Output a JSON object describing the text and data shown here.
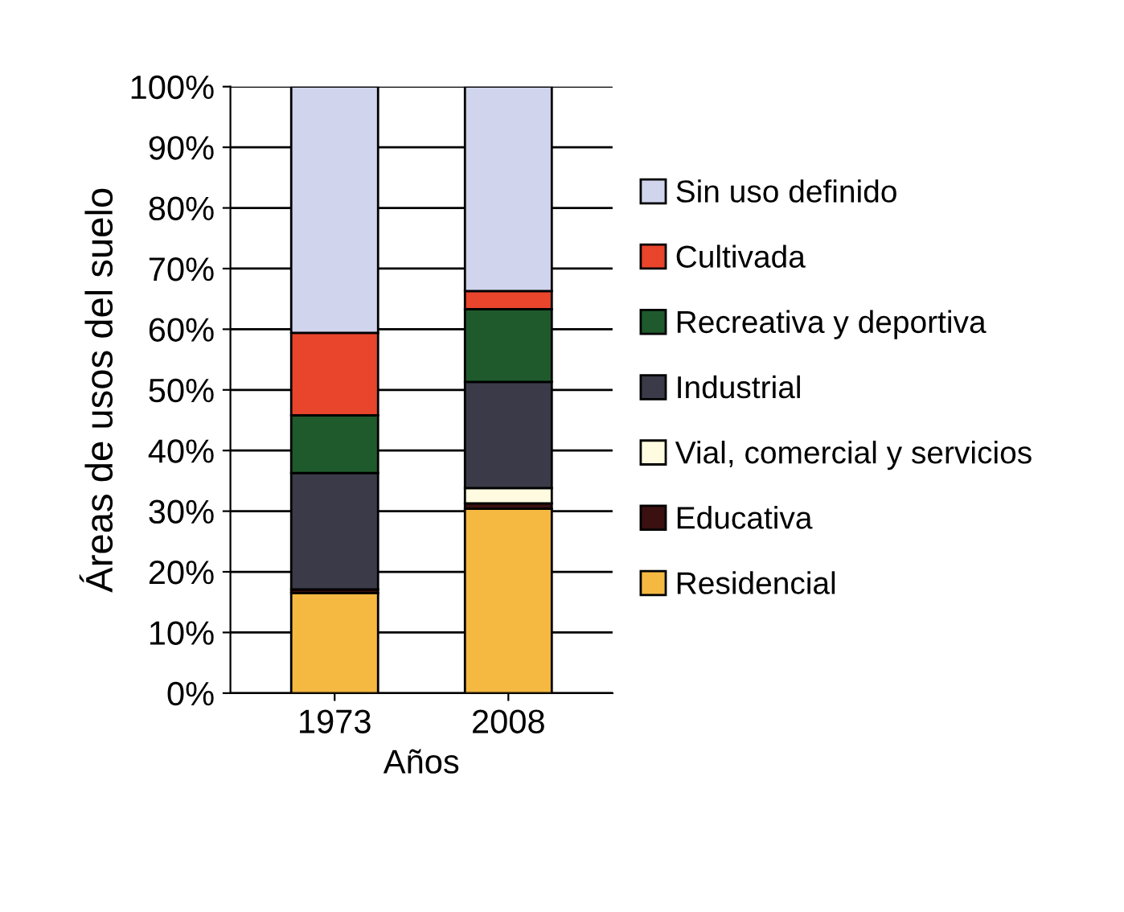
{
  "chart_data": {
    "type": "bar",
    "stacked": true,
    "xlabel": "Años",
    "ylabel": "Áreas de usos del suelo",
    "categories": [
      "1973",
      "2008"
    ],
    "series": [
      {
        "name": "Residencial",
        "color": "#f5b942",
        "values": [
          16.5,
          30.4
        ]
      },
      {
        "name": "Educativa",
        "color": "#3a1010",
        "values": [
          0.6,
          0.9
        ]
      },
      {
        "name": "Vial, comercial y servicios",
        "color": "#fffbe0",
        "values": [
          0,
          2.5
        ]
      },
      {
        "name": "Industrial",
        "color": "#3a3a48",
        "values": [
          19.2,
          17.5
        ]
      },
      {
        "name": "Recreativa y deportiva",
        "color": "#1f5a2c",
        "values": [
          9.5,
          12.0
        ]
      },
      {
        "name": "Cultivada",
        "color": "#e8452c",
        "values": [
          13.6,
          3.0
        ]
      },
      {
        "name": "Sin uso definido",
        "color": "#d0d4ec",
        "values": [
          40.6,
          33.7
        ]
      }
    ],
    "ylim": [
      0,
      100
    ],
    "yticks": [
      {
        "value": 0,
        "label": "0%"
      },
      {
        "value": 10,
        "label": "10%"
      },
      {
        "value": 20,
        "label": "20%"
      },
      {
        "value": 30,
        "label": "30%"
      },
      {
        "value": 40,
        "label": "40%"
      },
      {
        "value": 50,
        "label": "50%"
      },
      {
        "value": 60,
        "label": "60%"
      },
      {
        "value": 70,
        "label": "70%"
      },
      {
        "value": 80,
        "label": "80%"
      },
      {
        "value": 90,
        "label": "90%"
      },
      {
        "value": 100,
        "label": "100%"
      }
    ],
    "grid": "y",
    "legend": "right"
  }
}
